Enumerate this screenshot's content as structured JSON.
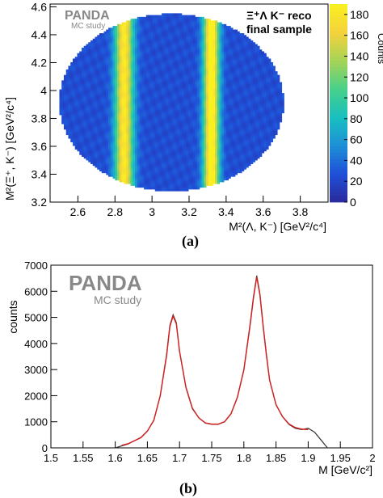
{
  "chart_data": [
    {
      "type": "heatmap",
      "panel_label": "(a)",
      "brand": "PANDA",
      "brand_subtitle": "MC study",
      "annotation_line1": "Ξ⁺Λ K⁻ reco",
      "annotation_line2": "final sample",
      "xlabel": "M²(Λ, K⁻) [GeV²/c⁴]",
      "ylabel": "M²(Ξ⁺, K⁻) [GeV²/c⁴]",
      "colorbar_label": "Counts",
      "xlim": [
        2.45,
        3.95
      ],
      "ylim": [
        3.2,
        4.62
      ],
      "xticks": [
        "2.6",
        "2.8",
        "3",
        "3.2",
        "3.4",
        "3.6",
        "3.8"
      ],
      "yticks": [
        "3.2",
        "3.4",
        "3.6",
        "3.8",
        "4",
        "4.2",
        "4.4",
        "4.6"
      ],
      "zlim": [
        0,
        190
      ],
      "colorbar_ticks": [
        "0",
        "20",
        "40",
        "60",
        "80",
        "100",
        "120",
        "140",
        "160",
        "180"
      ],
      "dalitz_boundary": {
        "x_min": 2.5,
        "x_max": 3.71,
        "y_min": 3.28,
        "y_max": 4.55
      },
      "bands": [
        {
          "x_center": 2.85,
          "width": 0.035,
          "peak_counts": 160
        },
        {
          "x_center": 3.32,
          "width": 0.03,
          "peak_counts": 180
        }
      ],
      "background_counts": 25,
      "colormap": [
        "#2b2a9b",
        "#1f4fd8",
        "#1d8fd6",
        "#18c0c0",
        "#47d08a",
        "#a6d456",
        "#f4d23c",
        "#f9f020"
      ]
    },
    {
      "type": "line",
      "panel_label": "(b)",
      "brand": "PANDA",
      "brand_subtitle": "MC study",
      "xlabel": "M [GeV/c²]",
      "ylabel": "counts",
      "xlim": [
        1.5,
        2.0
      ],
      "ylim": [
        0,
        7000
      ],
      "xticks": [
        "1.5",
        "1.55",
        "1.6",
        "1.65",
        "1.7",
        "1.75",
        "1.8",
        "1.85",
        "1.9",
        "1.95",
        "2"
      ],
      "yticks": [
        "0",
        "1000",
        "2000",
        "3000",
        "4000",
        "5000",
        "6000",
        "7000"
      ],
      "series": [
        {
          "color": "#333333",
          "x": [
            1.6,
            1.62,
            1.64,
            1.65,
            1.66,
            1.67,
            1.68,
            1.685,
            1.69,
            1.695,
            1.7,
            1.71,
            1.72,
            1.73,
            1.74,
            1.75,
            1.76,
            1.77,
            1.78,
            1.79,
            1.8,
            1.81,
            1.815,
            1.82,
            1.825,
            1.83,
            1.835,
            1.84,
            1.85,
            1.86,
            1.87,
            1.88,
            1.89,
            1.9,
            1.91,
            1.92,
            1.93
          ],
          "y": [
            0,
            150,
            400,
            650,
            1050,
            2000,
            3600,
            4700,
            5100,
            4800,
            3700,
            2300,
            1500,
            1150,
            950,
            900,
            900,
            1000,
            1300,
            1950,
            3000,
            4800,
            5800,
            6600,
            5900,
            4700,
            3600,
            2600,
            1650,
            1200,
            900,
            750,
            700,
            750,
            600,
            300,
            0
          ]
        },
        {
          "color": "#d62020",
          "x": [
            1.61,
            1.62,
            1.64,
            1.65,
            1.66,
            1.67,
            1.68,
            1.685,
            1.69,
            1.695,
            1.7,
            1.71,
            1.72,
            1.73,
            1.74,
            1.75,
            1.76,
            1.77,
            1.78,
            1.79,
            1.8,
            1.81,
            1.815,
            1.82,
            1.825,
            1.83,
            1.835,
            1.84,
            1.85,
            1.86,
            1.87,
            1.88,
            1.89,
            1.9
          ],
          "y": [
            100,
            160,
            390,
            640,
            1060,
            2000,
            3550,
            4650,
            5050,
            4750,
            3700,
            2320,
            1520,
            1150,
            960,
            910,
            910,
            1000,
            1310,
            1940,
            2980,
            4750,
            5750,
            6550,
            5850,
            4650,
            3560,
            2600,
            1660,
            1200,
            920,
            780,
            720,
            700
          ]
        }
      ]
    }
  ]
}
